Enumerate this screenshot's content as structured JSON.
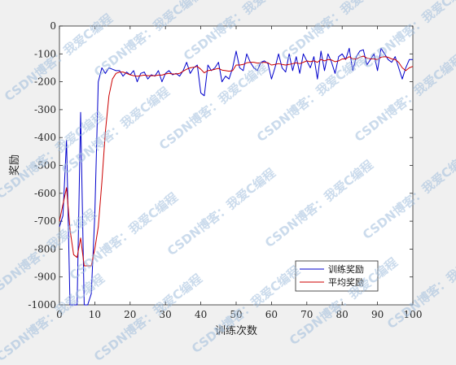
{
  "chart_data": {
    "type": "line",
    "xlabel": "训练次数",
    "ylabel": "奖励",
    "xlim": [
      0,
      100
    ],
    "ylim": [
      -1000,
      0
    ],
    "xticks": [
      0,
      10,
      20,
      30,
      40,
      50,
      60,
      70,
      80,
      90,
      100
    ],
    "yticks": [
      0,
      -100,
      -200,
      -300,
      -400,
      -500,
      -600,
      -700,
      -800,
      -900,
      -1000
    ],
    "grid": false,
    "legend_position": "bottom-right",
    "series": [
      {
        "name": "训练奖励",
        "color": "#0000cc",
        "x": [
          0,
          1,
          2,
          3,
          4,
          5,
          6,
          7,
          8,
          9,
          10,
          11,
          12,
          13,
          14,
          15,
          16,
          17,
          18,
          19,
          20,
          21,
          22,
          23,
          24,
          25,
          26,
          27,
          28,
          29,
          30,
          31,
          32,
          33,
          34,
          35,
          36,
          37,
          38,
          39,
          40,
          41,
          42,
          43,
          44,
          45,
          46,
          47,
          48,
          49,
          50,
          51,
          52,
          53,
          54,
          55,
          56,
          57,
          58,
          59,
          60,
          61,
          62,
          63,
          64,
          65,
          66,
          67,
          68,
          69,
          70,
          71,
          72,
          73,
          74,
          75,
          76,
          77,
          78,
          79,
          80,
          81,
          82,
          83,
          84,
          85,
          86,
          87,
          88,
          89,
          90,
          91,
          92,
          93,
          94,
          95,
          96,
          97,
          98,
          99,
          100
        ],
        "values": [
          -720,
          -680,
          -410,
          -1000,
          -1000,
          -1000,
          -310,
          -1000,
          -1000,
          -960,
          -680,
          -200,
          -150,
          -170,
          -150,
          -155,
          -160,
          -160,
          -180,
          -165,
          -175,
          -160,
          -200,
          -170,
          -165,
          -190,
          -175,
          -180,
          -160,
          -200,
          -170,
          -160,
          -175,
          -170,
          -180,
          -160,
          -130,
          -170,
          -150,
          -140,
          -240,
          -250,
          -140,
          -160,
          -150,
          -130,
          -200,
          -180,
          -190,
          -150,
          -90,
          -150,
          -160,
          -100,
          -130,
          -150,
          -160,
          -130,
          -125,
          -135,
          -190,
          -150,
          -100,
          -150,
          -165,
          -100,
          -160,
          -110,
          -170,
          -100,
          -125,
          -150,
          -110,
          -190,
          -90,
          -160,
          -100,
          -130,
          -170,
          -110,
          -100,
          -120,
          -80,
          -160,
          -110,
          -90,
          -85,
          -140,
          -120,
          -100,
          -160,
          -80,
          -100,
          -120,
          -130,
          -110,
          -150,
          -190,
          -150,
          -120,
          -120
        ]
      },
      {
        "name": "平均奖励",
        "color": "#cc0000",
        "x": [
          0,
          1,
          2,
          3,
          4,
          5,
          6,
          7,
          8,
          9,
          10,
          11,
          12,
          13,
          14,
          15,
          16,
          17,
          18,
          19,
          20,
          21,
          22,
          23,
          24,
          25,
          26,
          27,
          28,
          29,
          30,
          31,
          32,
          33,
          34,
          35,
          36,
          37,
          38,
          39,
          40,
          41,
          42,
          43,
          44,
          45,
          46,
          47,
          48,
          49,
          50,
          51,
          52,
          53,
          54,
          55,
          56,
          57,
          58,
          59,
          60,
          61,
          62,
          63,
          64,
          65,
          66,
          67,
          68,
          69,
          70,
          71,
          72,
          73,
          74,
          75,
          76,
          77,
          78,
          79,
          80,
          81,
          82,
          83,
          84,
          85,
          86,
          87,
          88,
          89,
          90,
          91,
          92,
          93,
          94,
          95,
          96,
          97,
          98,
          99,
          100
        ],
        "values": [
          -700,
          -640,
          -580,
          -730,
          -820,
          -830,
          -760,
          -860,
          -860,
          -860,
          -800,
          -720,
          -560,
          -380,
          -250,
          -190,
          -170,
          -165,
          -165,
          -170,
          -175,
          -178,
          -180,
          -178,
          -176,
          -178,
          -178,
          -178,
          -176,
          -176,
          -172,
          -170,
          -172,
          -172,
          -170,
          -162,
          -155,
          -150,
          -148,
          -145,
          -155,
          -168,
          -160,
          -158,
          -155,
          -152,
          -158,
          -160,
          -162,
          -160,
          -140,
          -140,
          -138,
          -132,
          -130,
          -130,
          -133,
          -132,
          -130,
          -132,
          -140,
          -138,
          -135,
          -138,
          -140,
          -138,
          -135,
          -132,
          -135,
          -130,
          -125,
          -128,
          -125,
          -130,
          -120,
          -125,
          -120,
          -122,
          -128,
          -125,
          -118,
          -118,
          -110,
          -118,
          -118,
          -112,
          -108,
          -115,
          -118,
          -118,
          -120,
          -112,
          -110,
          -112,
          -118,
          -120,
          -130,
          -150,
          -160,
          -150,
          -145
        ]
      }
    ]
  },
  "watermark": "CSDN博客：我爱C编程"
}
